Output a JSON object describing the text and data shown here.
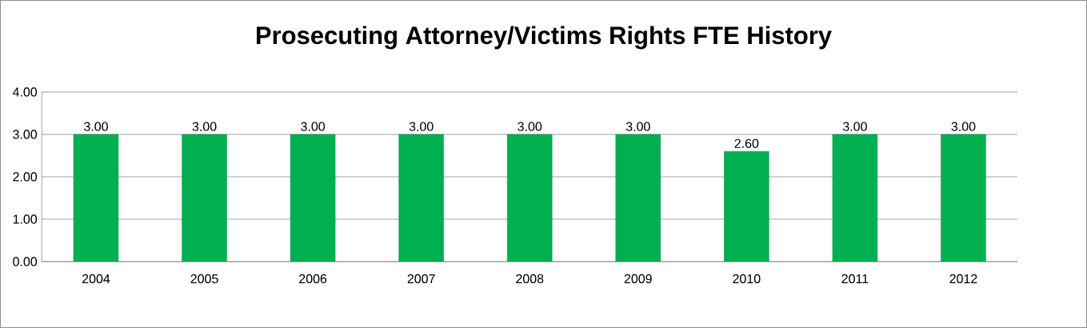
{
  "chart_data": {
    "type": "bar",
    "title": "Prosecuting Attorney/Victims Rights FTE History",
    "categories": [
      "2004",
      "2005",
      "2006",
      "2007",
      "2008",
      "2009",
      "2010",
      "2011",
      "2012"
    ],
    "values": [
      3.0,
      3.0,
      3.0,
      3.0,
      3.0,
      3.0,
      2.6,
      3.0,
      3.0
    ],
    "value_labels": [
      "3.00",
      "3.00",
      "3.00",
      "3.00",
      "3.00",
      "3.00",
      "2.60",
      "3.00",
      "3.00"
    ],
    "color": "#00b050",
    "ylim": [
      0,
      4
    ],
    "yticks": [
      {
        "value": 0,
        "label": "0.00"
      },
      {
        "value": 1,
        "label": "1.00"
      },
      {
        "value": 2,
        "label": "2.00"
      },
      {
        "value": 3,
        "label": "3.00"
      },
      {
        "value": 4,
        "label": "4.00"
      }
    ],
    "grid": "y"
  }
}
